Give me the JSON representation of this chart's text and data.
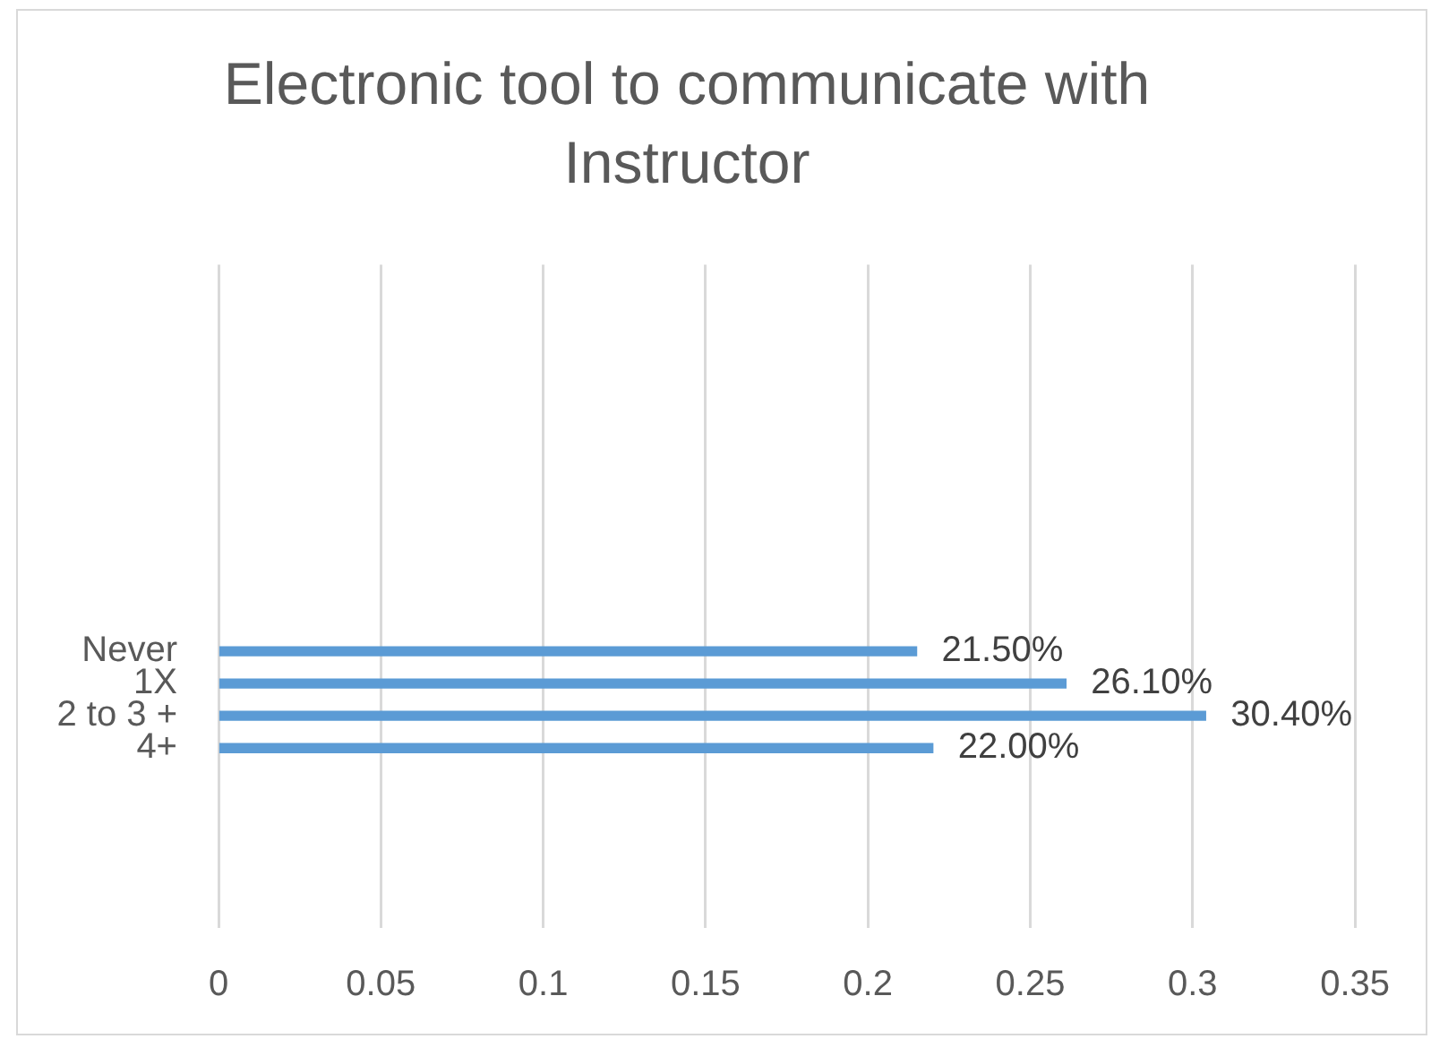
{
  "chart_data": {
    "type": "bar",
    "orientation": "horizontal",
    "title": "Electronic tool to communicate with Instructor",
    "categories": [
      "Never",
      "1X",
      "2 to 3 +",
      "4+"
    ],
    "values": [
      0.215,
      0.261,
      0.304,
      0.22
    ],
    "value_labels": [
      "21.50%",
      "26.10%",
      "30.40%",
      "22.00%"
    ],
    "color": "#5b9bd5",
    "xlim": [
      0,
      0.35
    ],
    "xticks": [
      0,
      0.05,
      0.1,
      0.15,
      0.2,
      0.25,
      0.3,
      0.35
    ],
    "grid": "x"
  }
}
